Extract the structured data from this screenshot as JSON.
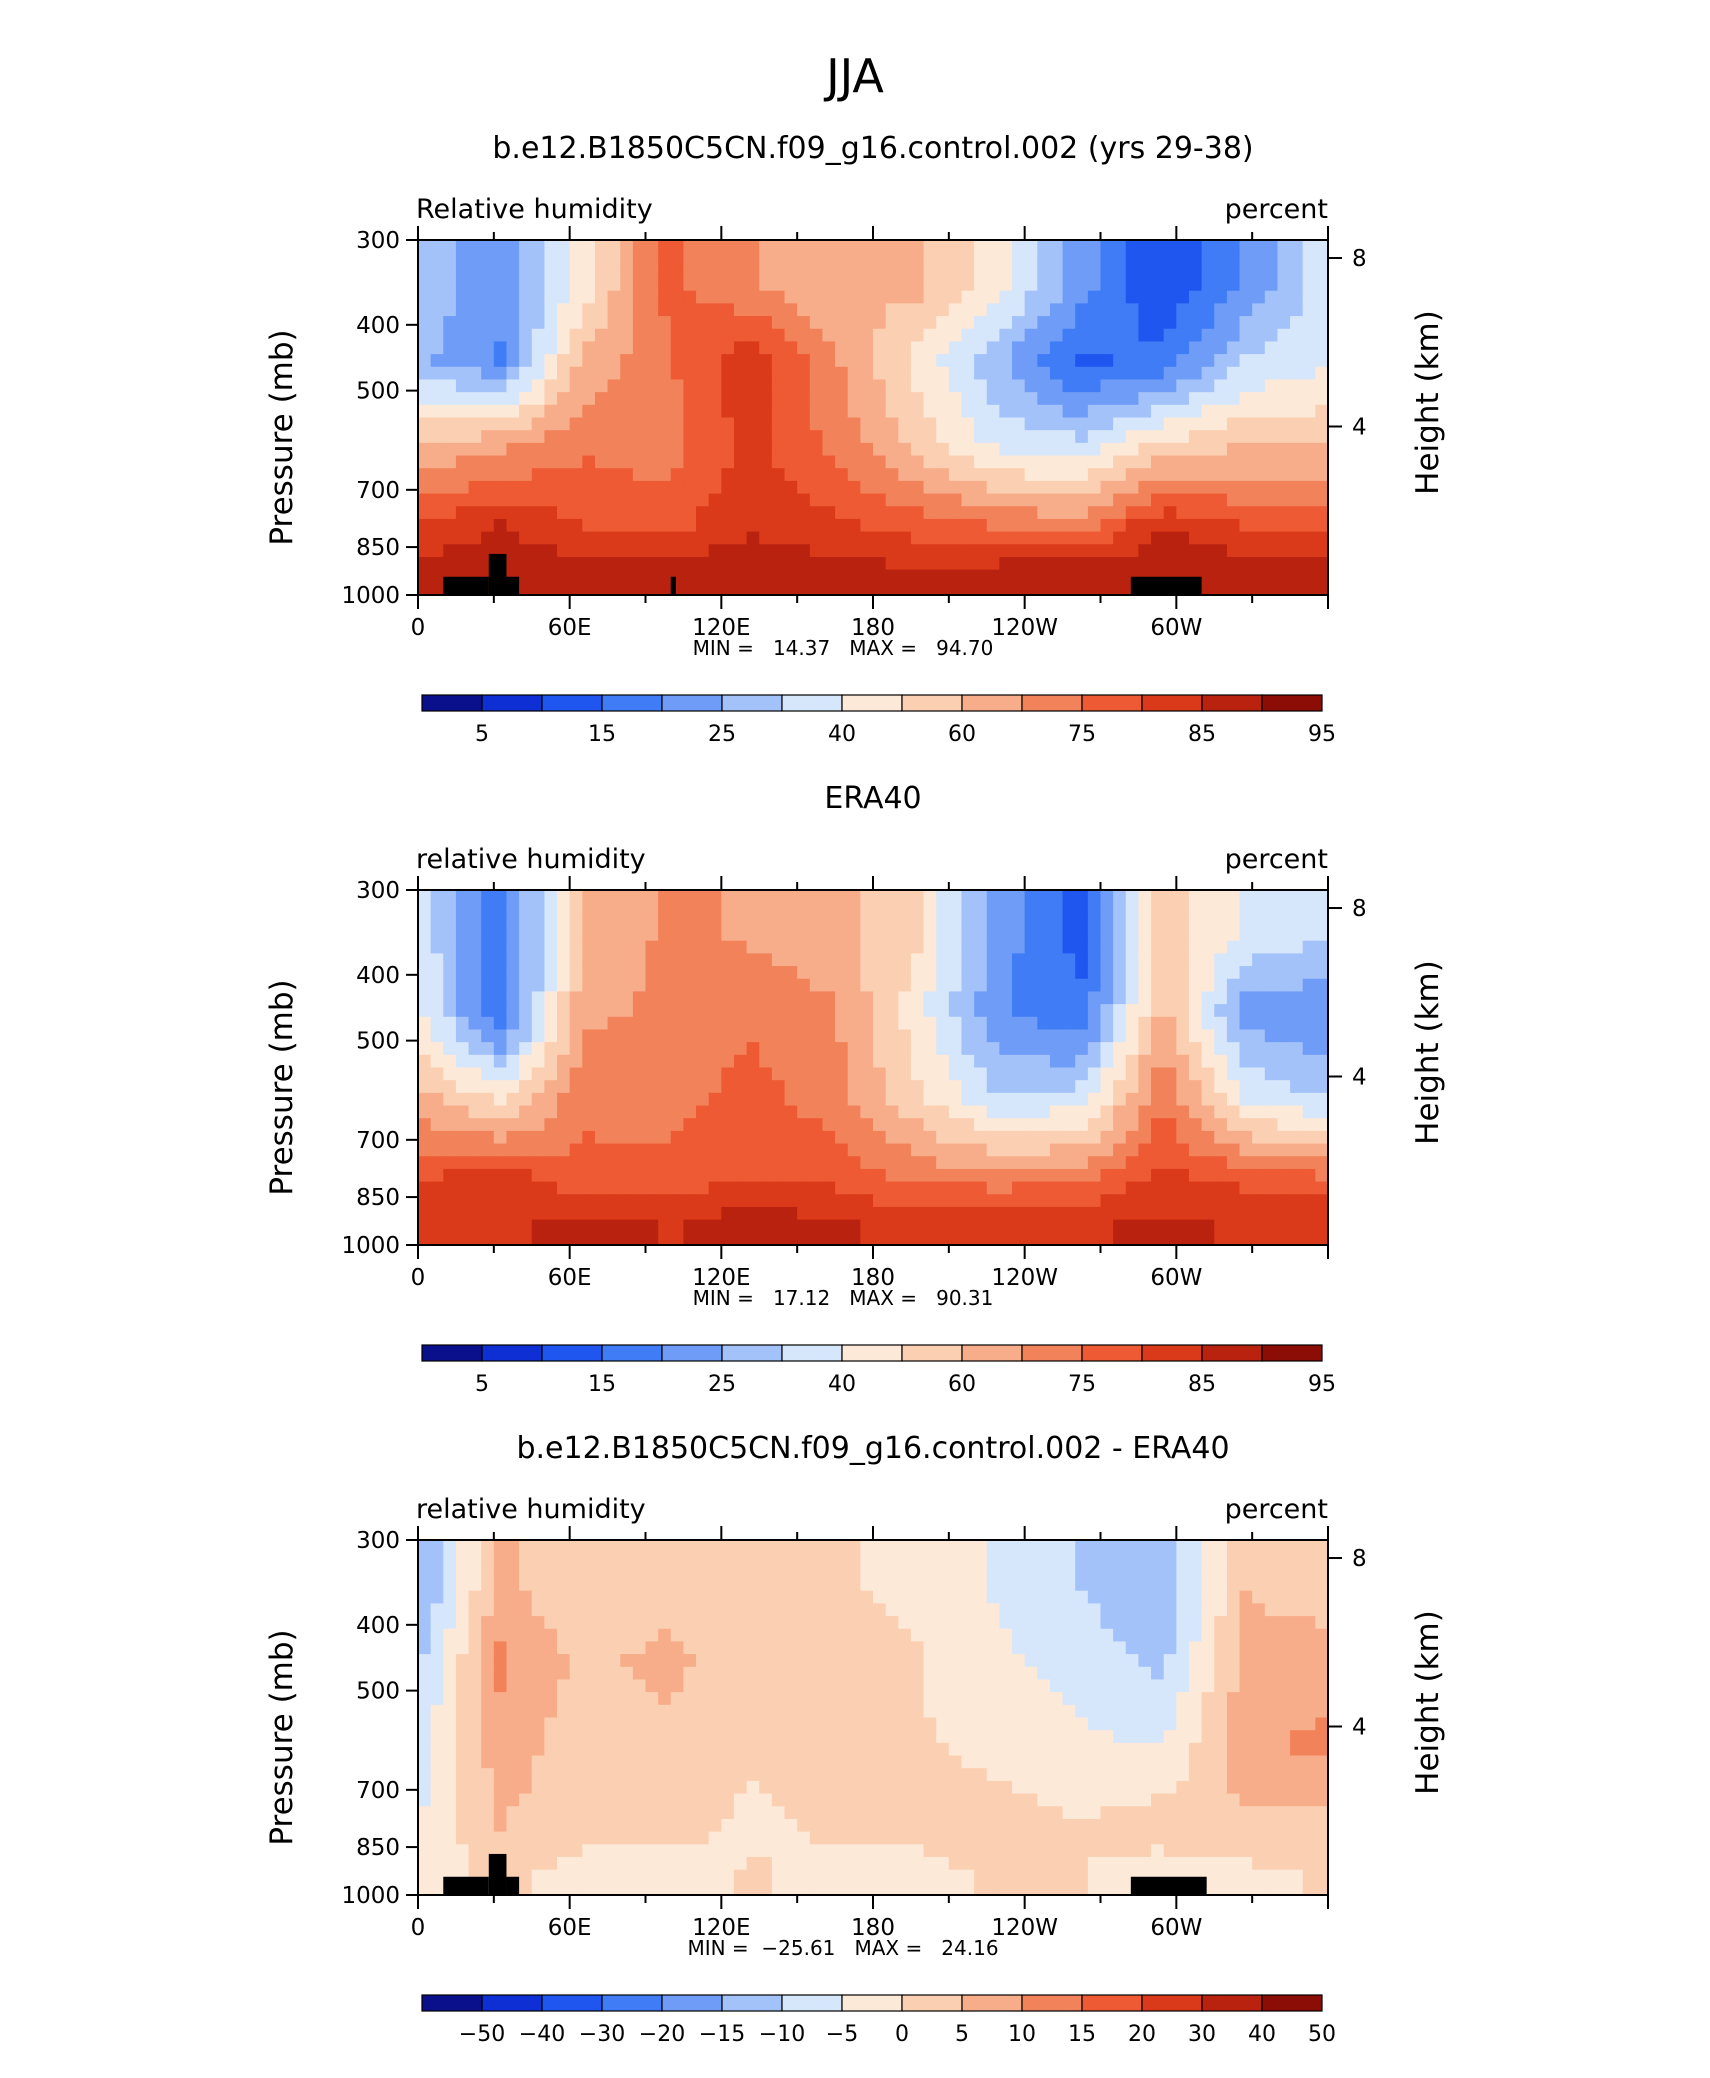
{
  "page_title": "JJA",
  "chart_data": [
    {
      "type": "heatmap",
      "title": "b.e12.B1850C5CN.f09_g16.control.002 (yrs 29-38)",
      "left_label": "Relative humidity",
      "right_label": "percent",
      "xlabel": "",
      "ylabel": "Pressure (mb)",
      "ylabel_right": "Height (km)",
      "x_ticks": [
        "0",
        "60E",
        "120E",
        "180",
        "120W",
        "60W"
      ],
      "x_tick_positions": [
        0,
        60,
        120,
        180,
        240,
        300
      ],
      "xlim": [
        0,
        360
      ],
      "y_ticks": [
        "300",
        "400",
        "500",
        "700",
        "850",
        "1000"
      ],
      "y_tick_values": [
        300,
        400,
        500,
        700,
        850,
        1000
      ],
      "ylim": [
        1000,
        300
      ],
      "height_ticks": [
        "8",
        "4"
      ],
      "height_tick_values_km": [
        8,
        4
      ],
      "stats": "MIN =   14.37   MAX =   94.70",
      "colorbar_labels": [
        "5",
        "15",
        "25",
        "40",
        "60",
        "75",
        "85",
        "95"
      ],
      "approx_field_rows": [
        {
          "pressure": 350,
          "values": [
            38,
            28,
            50,
            75,
            68,
            60,
            62,
            50,
            30,
            14,
            28,
            45
          ]
        },
        {
          "pressure": 450,
          "values": [
            35,
            26,
            62,
            72,
            85,
            68,
            52,
            35,
            18,
            22,
            40,
            45
          ]
        },
        {
          "pressure": 600,
          "values": [
            60,
            65,
            72,
            70,
            82,
            72,
            58,
            45,
            42,
            55,
            60,
            60
          ]
        },
        {
          "pressure": 800,
          "values": [
            82,
            88,
            80,
            78,
            86,
            82,
            78,
            74,
            72,
            88,
            80,
            78
          ]
        },
        {
          "pressure": 925,
          "values": [
            90,
            88,
            92,
            90,
            92,
            90,
            88,
            90,
            92,
            90,
            92,
            90
          ]
        }
      ],
      "topography": [
        {
          "lon_start": 10,
          "lon_end": 28,
          "surface_pressure": 940
        },
        {
          "lon_start": 28,
          "lon_end": 35,
          "surface_pressure": 870
        },
        {
          "lon_start": 35,
          "lon_end": 40,
          "surface_pressure": 940
        },
        {
          "lon_start": 100,
          "lon_end": 102,
          "surface_pressure": 940
        },
        {
          "lon_start": 282,
          "lon_end": 310,
          "surface_pressure": 940
        }
      ]
    },
    {
      "type": "heatmap",
      "title": "ERA40",
      "left_label": "relative humidity",
      "right_label": "percent",
      "xlabel": "",
      "ylabel": "Pressure (mb)",
      "ylabel_right": "Height (km)",
      "x_ticks": [
        "0",
        "60E",
        "120E",
        "180",
        "120W",
        "60W"
      ],
      "x_tick_positions": [
        0,
        60,
        120,
        180,
        240,
        300
      ],
      "xlim": [
        0,
        360
      ],
      "y_ticks": [
        "300",
        "400",
        "500",
        "700",
        "850",
        "1000"
      ],
      "y_tick_values": [
        300,
        400,
        500,
        700,
        850,
        1000
      ],
      "ylim": [
        1000,
        300
      ],
      "height_ticks": [
        "8",
        "4"
      ],
      "height_tick_values_km": [
        8,
        4
      ],
      "stats": "MIN =   17.12   MAX =   90.31",
      "colorbar_labels": [
        "5",
        "15",
        "25",
        "40",
        "60",
        "75",
        "85",
        "95"
      ],
      "approx_field_rows": [
        {
          "pressure": 350,
          "values": [
            45,
            22,
            60,
            68,
            66,
            62,
            55,
            30,
            18,
            58,
            45,
            40
          ]
        },
        {
          "pressure": 450,
          "values": [
            48,
            20,
            65,
            68,
            72,
            68,
            50,
            28,
            20,
            62,
            30,
            28
          ]
        },
        {
          "pressure": 600,
          "values": [
            62,
            50,
            72,
            70,
            76,
            70,
            55,
            40,
            42,
            72,
            45,
            38
          ]
        },
        {
          "pressure": 800,
          "values": [
            80,
            84,
            75,
            76,
            80,
            78,
            72,
            70,
            72,
            82,
            78,
            75
          ]
        },
        {
          "pressure": 925,
          "values": [
            86,
            85,
            90,
            86,
            90,
            88,
            84,
            86,
            86,
            88,
            86,
            86
          ]
        }
      ],
      "topography": []
    },
    {
      "type": "heatmap",
      "title": "b.e12.B1850C5CN.f09_g16.control.002 - ERA40",
      "left_label": "relative humidity",
      "right_label": "percent",
      "xlabel": "",
      "ylabel": "Pressure (mb)",
      "ylabel_right": "Height (km)",
      "x_ticks": [
        "0",
        "60E",
        "120E",
        "180",
        "120W",
        "60W"
      ],
      "x_tick_positions": [
        0,
        60,
        120,
        180,
        240,
        300
      ],
      "xlim": [
        0,
        360
      ],
      "y_ticks": [
        "300",
        "400",
        "500",
        "700",
        "850",
        "1000"
      ],
      "y_tick_values": [
        300,
        400,
        500,
        700,
        850,
        1000
      ],
      "ylim": [
        1000,
        300
      ],
      "height_ticks": [
        "8",
        "4"
      ],
      "height_tick_values_km": [
        8,
        4
      ],
      "stats": "MIN =  −25.61   MAX =   24.16",
      "colorbar_labels": [
        "−50",
        "−40",
        "−30",
        "−20",
        "−15",
        "−10",
        "−5",
        "0",
        "5",
        "10",
        "15",
        "20",
        "30",
        "40",
        "50"
      ],
      "approx_field_rows": [
        {
          "pressure": 350,
          "values": [
            -18,
            12,
            4,
            8,
            6,
            4,
            2,
            -4,
            -10,
            -16,
            10,
            6
          ]
        },
        {
          "pressure": 450,
          "values": [
            -12,
            18,
            8,
            12,
            6,
            6,
            4,
            -2,
            -6,
            -12,
            12,
            14
          ]
        },
        {
          "pressure": 600,
          "values": [
            -6,
            14,
            6,
            8,
            4,
            6,
            4,
            2,
            -2,
            -4,
            16,
            18
          ]
        },
        {
          "pressure": 800,
          "values": [
            -4,
            10,
            4,
            6,
            2,
            4,
            4,
            6,
            4,
            8,
            8,
            6
          ]
        },
        {
          "pressure": 925,
          "values": [
            2,
            4,
            2,
            -2,
            4,
            2,
            2,
            4,
            4,
            -2,
            2,
            4
          ]
        }
      ],
      "topography": [
        {
          "lon_start": 10,
          "lon_end": 28,
          "surface_pressure": 940
        },
        {
          "lon_start": 28,
          "lon_end": 35,
          "surface_pressure": 870
        },
        {
          "lon_start": 35,
          "lon_end": 40,
          "surface_pressure": 940
        },
        {
          "lon_start": 282,
          "lon_end": 312,
          "surface_pressure": 940
        }
      ]
    }
  ],
  "colors": {
    "blues": [
      "#0a0f8c",
      "#0d2fd4",
      "#1f56f0",
      "#3f7cf5",
      "#6f9cf7",
      "#a3c2f9",
      "#d6e6fb"
    ],
    "reds": [
      "#fde9d8",
      "#fbcfb2",
      "#f7ad8a",
      "#f28259",
      "#ed5a33",
      "#db3a1a",
      "#b8220e",
      "#8c0c06"
    ]
  }
}
